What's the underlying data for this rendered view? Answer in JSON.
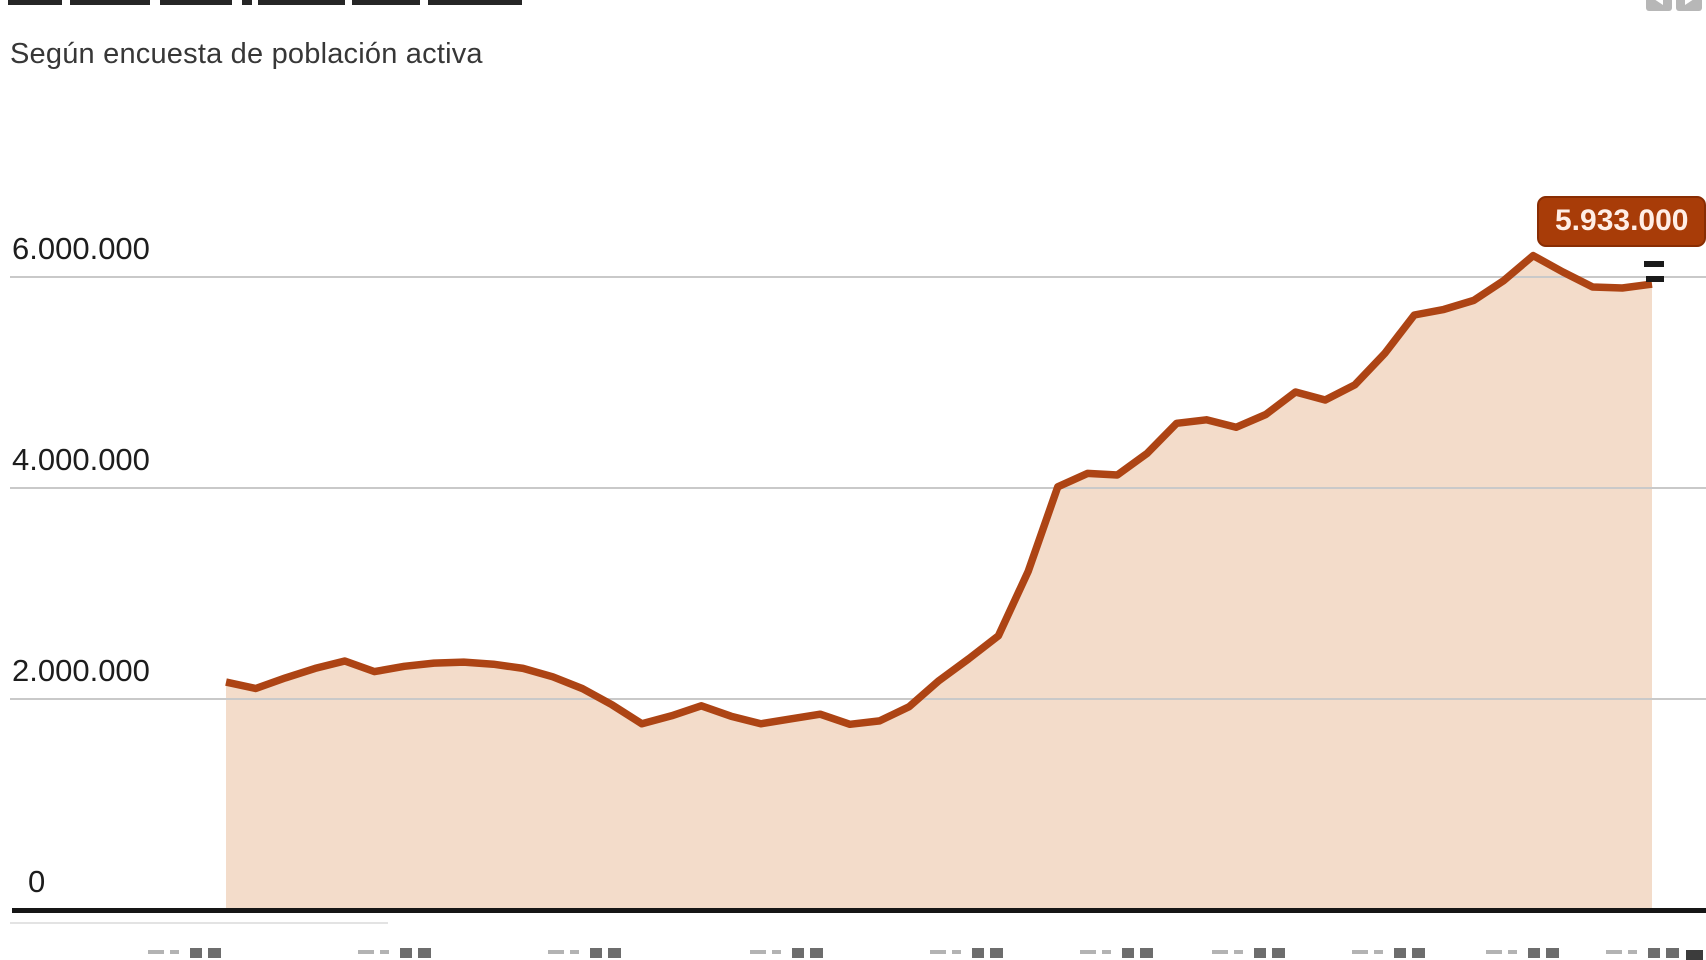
{
  "header": {
    "title_clipped": true,
    "subtitle": "Según encuesta de población activa",
    "toolbar": {
      "prev_icon": "previous-arrow",
      "next_icon": "next-arrow"
    }
  },
  "chart_data": {
    "type": "area",
    "subtitle": "Según encuesta de población activa",
    "grid": true,
    "legend": "none",
    "ylim": [
      0,
      6700000
    ],
    "y_ticks": [
      {
        "value": 0,
        "label": "0"
      },
      {
        "value": 2000000,
        "label": "2.000.000"
      },
      {
        "value": 4000000,
        "label": "4.000.000"
      },
      {
        "value": 6000000,
        "label": "6.000.000"
      }
    ],
    "x_labels_visible": false,
    "x_labels_note": "quarterly tick labels clipped at bottom edge of screenshot",
    "series": [
      {
        "name": "parados-epa",
        "line_color": "#ad4414",
        "fill_color": "#f3dcca",
        "values": [
          2160000,
          2100000,
          2200000,
          2290000,
          2360000,
          2260000,
          2310000,
          2340000,
          2350000,
          2330000,
          2290000,
          2210000,
          2099000,
          1944000,
          1765000,
          1841000,
          1936000,
          1837000,
          1765000,
          1811000,
          1856000,
          1760000,
          1792000,
          1928000,
          2174000,
          2381000,
          2599000,
          3208000,
          4011000,
          4138000,
          4123000,
          4327000,
          4613000,
          4646000,
          4575000,
          4697000,
          4910000,
          4834000,
          4978000,
          5274000,
          5640000,
          5693000,
          5778000,
          5965000,
          6203000,
          6047000,
          5905000,
          5896000,
          5933000
        ]
      }
    ],
    "last_point": {
      "value": 5933000,
      "label": "5.933.000",
      "marker": "black-double-dash"
    }
  },
  "colors": {
    "gridline": "#c9c9c9",
    "baseline": "#161616",
    "label_bg": "#a83c08",
    "label_text": "#ffeee6",
    "axis_text": "#1d1d1d"
  }
}
